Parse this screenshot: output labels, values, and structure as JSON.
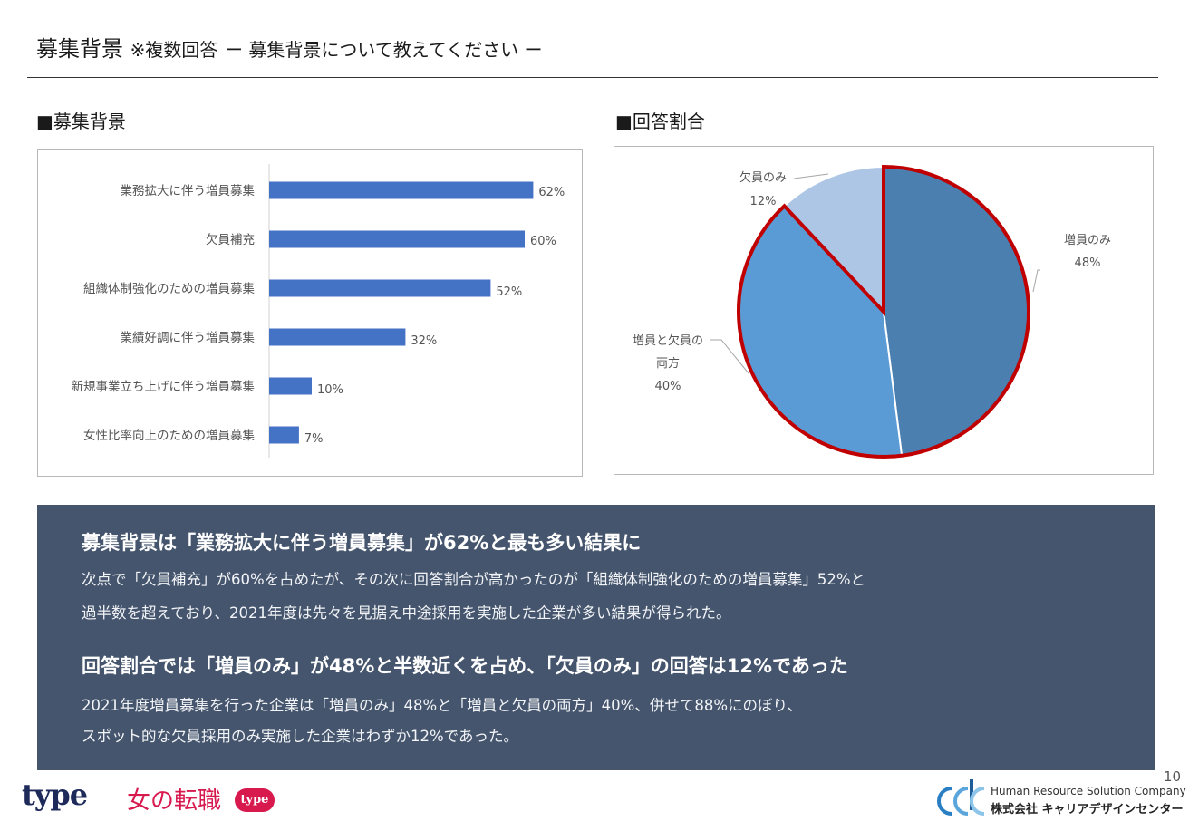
{
  "header": {
    "title": "募集背景",
    "note": "※複数回答",
    "subtitle": "ー 募集背景について教えてください ー"
  },
  "sections": {
    "left_label": "■募集背景",
    "right_label": "■回答割合"
  },
  "chart_data": [
    {
      "type": "bar",
      "orientation": "horizontal",
      "title": "",
      "categories": [
        "業務拡大に伴う増員募集",
        "欠員補充",
        "組織体制強化のための増員募集",
        "業績好調に伴う増員募集",
        "新規事業立ち上げに伴う増員募集",
        "女性比率向上のための増員募集"
      ],
      "values": [
        62,
        60,
        52,
        32,
        10,
        7
      ],
      "value_labels": [
        "62%",
        "60%",
        "52%",
        "32%",
        "10%",
        "7%"
      ],
      "xlim": [
        0,
        100
      ],
      "grid": false,
      "colors": {
        "bar": "#4472c4"
      }
    },
    {
      "type": "pie",
      "title": "",
      "slices": [
        {
          "label": "増員のみ",
          "value": 48,
          "value_label": "48%",
          "color": "#4a7fb0"
        },
        {
          "label": "増員と欠員の両方",
          "label_lines": [
            "増員と欠員の",
            "両方"
          ],
          "value": 40,
          "value_label": "40%",
          "color": "#5b9bd5"
        },
        {
          "label": "欠員のみ",
          "value": 12,
          "value_label": "12%",
          "color": "#aec6e6"
        }
      ],
      "highlight_color": "#c00000"
    }
  ],
  "summary": {
    "head1": "募集背景は「業務拡大に伴う増員募集」が62%と最も多い結果に",
    "body1_line1": "次点で「欠員補充」が60%を占めたが、その次に回答割合が高かったのが「組織体制強化のための増員募集」52%と",
    "body1_line2": "過半数を超えており、2021年度は先々を見据え中途採用を実施した企業が多い結果が得られた。",
    "head2": "回答割合では「増員のみ」が48%と半数近くを占め、「欠員のみ」の回答は12%であった",
    "body2_line1": "2021年度増員募集を行った企業は「増員のみ」48%と「増員と欠員の両方」40%、併せて88%にのぼり、",
    "body2_line2": "スポット的な欠員採用のみ実施した企業はわずか12%であった。"
  },
  "page_number": "10",
  "footer": {
    "logo_type": "type",
    "logo_onna": "女の転職",
    "logo_badge": "type",
    "company_en": "Human Resource Solution Company",
    "company_jp": "株式会社 キャリアデザインセンター"
  },
  "colors": {
    "summary_bg": "#45556d",
    "accent_red": "#c00000",
    "logo_red": "#d7194e",
    "logo_navy": "#1d2a5a"
  }
}
